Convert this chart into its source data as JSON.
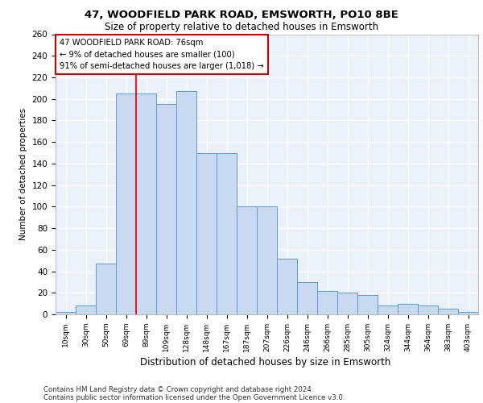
{
  "title1": "47, WOODFIELD PARK ROAD, EMSWORTH, PO10 8BE",
  "title2": "Size of property relative to detached houses in Emsworth",
  "xlabel": "Distribution of detached houses by size in Emsworth",
  "ylabel": "Number of detached properties",
  "categories": [
    "10sqm",
    "30sqm",
    "50sqm",
    "69sqm",
    "89sqm",
    "109sqm",
    "128sqm",
    "148sqm",
    "167sqm",
    "187sqm",
    "207sqm",
    "226sqm",
    "246sqm",
    "266sqm",
    "285sqm",
    "305sqm",
    "324sqm",
    "344sqm",
    "364sqm",
    "383sqm",
    "403sqm"
  ],
  "values": [
    2,
    8,
    47,
    205,
    205,
    195,
    207,
    150,
    150,
    100,
    100,
    52,
    30,
    22,
    20,
    18,
    8,
    10,
    8,
    5,
    2
  ],
  "bar_color": "#c9d9f0",
  "bar_edge_color": "#5b9bd5",
  "background_color": "#eaf1fb",
  "grid_color": "#ffffff",
  "red_line_x": 3.5,
  "annotation_text": "47 WOODFIELD PARK ROAD: 76sqm\n← 9% of detached houses are smaller (100)\n91% of semi-detached houses are larger (1,018) →",
  "annotation_box_color": "#ffffff",
  "annotation_box_edge_color": "#cc0000",
  "footer1": "Contains HM Land Registry data © Crown copyright and database right 2024.",
  "footer2": "Contains public sector information licensed under the Open Government Licence v3.0.",
  "ylim": [
    0,
    260
  ],
  "yticks": [
    0,
    20,
    40,
    60,
    80,
    100,
    120,
    140,
    160,
    180,
    200,
    220,
    240,
    260
  ]
}
